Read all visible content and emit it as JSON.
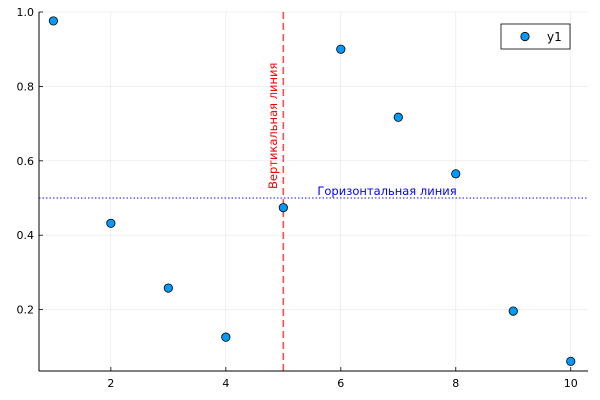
{
  "chart_data": {
    "type": "scatter",
    "title": "",
    "xlabel": "",
    "ylabel": "",
    "xlim": [
      0.75,
      10.3
    ],
    "ylim": [
      0.035,
      1.0
    ],
    "x_ticks": [
      2,
      4,
      6,
      8,
      10
    ],
    "y_ticks": [
      0.2,
      0.4,
      0.6,
      0.8,
      1.0
    ],
    "x_tick_labels": [
      "2",
      "4",
      "6",
      "8",
      "10"
    ],
    "y_tick_labels": [
      "0.2",
      "0.4",
      "0.6",
      "0.8",
      "1.0"
    ],
    "grid": true,
    "legend_position": "top-right",
    "series": [
      {
        "name": "y1",
        "color": "#009AFA",
        "x": [
          1,
          2,
          3,
          4,
          5,
          6,
          7,
          8,
          9,
          10
        ],
        "y": [
          0.976,
          0.432,
          0.258,
          0.126,
          0.474,
          0.9,
          0.717,
          0.565,
          0.196,
          0.061
        ]
      }
    ],
    "annotations": [
      {
        "kind": "vline",
        "x": 5,
        "color": "#FF0000",
        "style": "dashed",
        "label": "Вертикальная линия"
      },
      {
        "kind": "hline",
        "y": 0.5,
        "color": "#0000FF",
        "style": "dotted",
        "label": "Горизонтальная линия"
      }
    ]
  }
}
